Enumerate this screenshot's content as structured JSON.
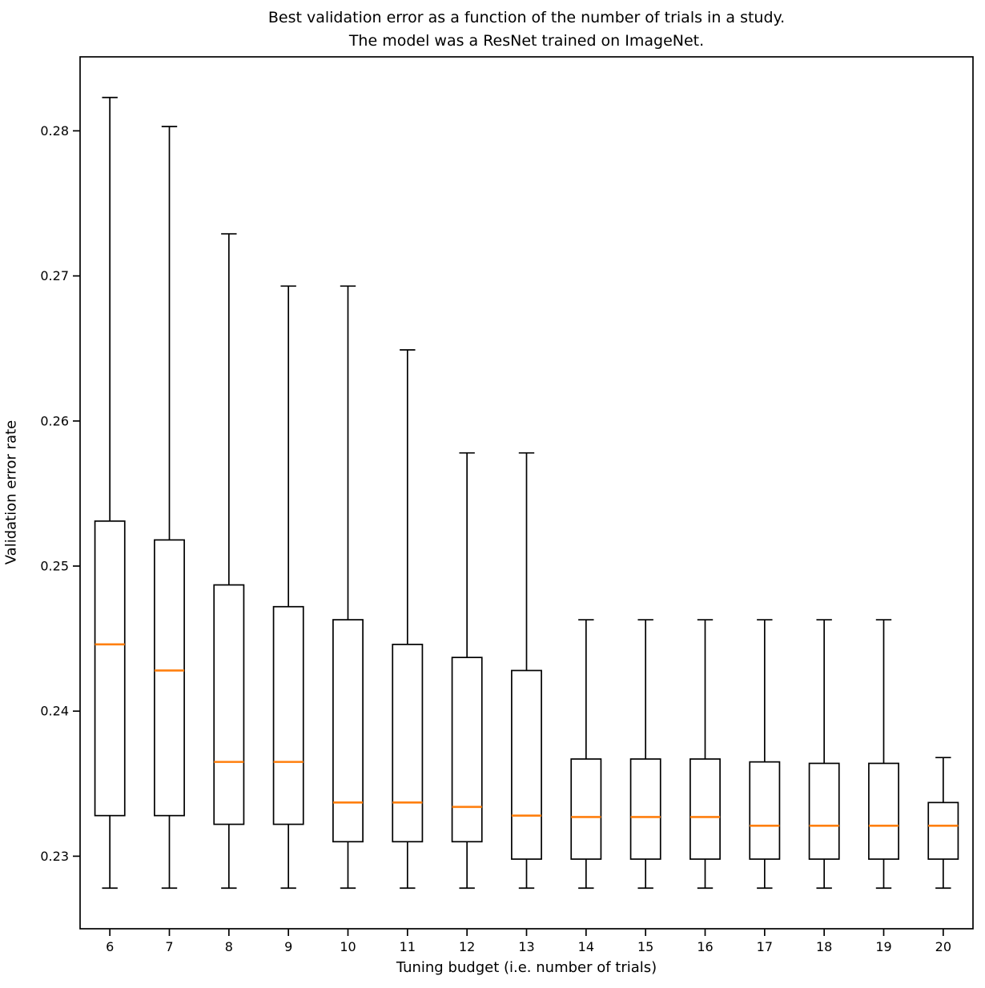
{
  "chart_data": {
    "type": "boxplot",
    "title": "Best validation error as a function of the number of trials in a study.\nThe model was a ResNet trained on ImageNet.",
    "title_lines": [
      "Best validation error as a function of the number of trials in a study.",
      "The model was a ResNet trained on ImageNet."
    ],
    "xlabel": "Tuning budget (i.e. number of trials)",
    "ylabel": "Validation error rate",
    "categories": [
      6,
      7,
      8,
      9,
      10,
      11,
      12,
      13,
      14,
      15,
      16,
      17,
      18,
      19,
      20
    ],
    "boxes": [
      {
        "label": "6",
        "whislo": 0.2278,
        "q1": 0.2328,
        "med": 0.2446,
        "q3": 0.2531,
        "whishi": 0.2823
      },
      {
        "label": "7",
        "whislo": 0.2278,
        "q1": 0.2328,
        "med": 0.2428,
        "q3": 0.2518,
        "whishi": 0.2803
      },
      {
        "label": "8",
        "whislo": 0.2278,
        "q1": 0.2322,
        "med": 0.2365,
        "q3": 0.2487,
        "whishi": 0.2729
      },
      {
        "label": "9",
        "whislo": 0.2278,
        "q1": 0.2322,
        "med": 0.2365,
        "q3": 0.2472,
        "whishi": 0.2693
      },
      {
        "label": "10",
        "whislo": 0.2278,
        "q1": 0.231,
        "med": 0.2337,
        "q3": 0.2463,
        "whishi": 0.2693
      },
      {
        "label": "11",
        "whislo": 0.2278,
        "q1": 0.231,
        "med": 0.2337,
        "q3": 0.2446,
        "whishi": 0.2649
      },
      {
        "label": "12",
        "whislo": 0.2278,
        "q1": 0.231,
        "med": 0.2334,
        "q3": 0.2437,
        "whishi": 0.2578
      },
      {
        "label": "13",
        "whislo": 0.2278,
        "q1": 0.2298,
        "med": 0.2328,
        "q3": 0.2428,
        "whishi": 0.2578
      },
      {
        "label": "14",
        "whislo": 0.2278,
        "q1": 0.2298,
        "med": 0.2327,
        "q3": 0.2367,
        "whishi": 0.2463
      },
      {
        "label": "15",
        "whislo": 0.2278,
        "q1": 0.2298,
        "med": 0.2327,
        "q3": 0.2367,
        "whishi": 0.2463
      },
      {
        "label": "16",
        "whislo": 0.2278,
        "q1": 0.2298,
        "med": 0.2327,
        "q3": 0.2367,
        "whishi": 0.2463
      },
      {
        "label": "17",
        "whislo": 0.2278,
        "q1": 0.2298,
        "med": 0.2321,
        "q3": 0.2365,
        "whishi": 0.2463
      },
      {
        "label": "18",
        "whislo": 0.2278,
        "q1": 0.2298,
        "med": 0.2321,
        "q3": 0.2364,
        "whishi": 0.2463
      },
      {
        "label": "19",
        "whislo": 0.2278,
        "q1": 0.2298,
        "med": 0.2321,
        "q3": 0.2364,
        "whishi": 0.2463
      },
      {
        "label": "20",
        "whislo": 0.2278,
        "q1": 0.2298,
        "med": 0.2321,
        "q3": 0.2337,
        "whishi": 0.2368
      }
    ],
    "yticks": [
      0.23,
      0.24,
      0.25,
      0.26,
      0.27,
      0.28
    ],
    "ytick_labels": [
      "0.23",
      "0.24",
      "0.25",
      "0.26",
      "0.27",
      "0.28"
    ],
    "ylim": [
      0.225,
      0.2851
    ],
    "xlim": [
      0.5,
      15.5
    ],
    "grid": false,
    "legend": null,
    "colors": {
      "box_line": "#000000",
      "whisker_line": "#000000",
      "median_line": "#ff7f0e",
      "axis_line": "#000000",
      "text": "#000000",
      "background": "#ffffff"
    }
  }
}
